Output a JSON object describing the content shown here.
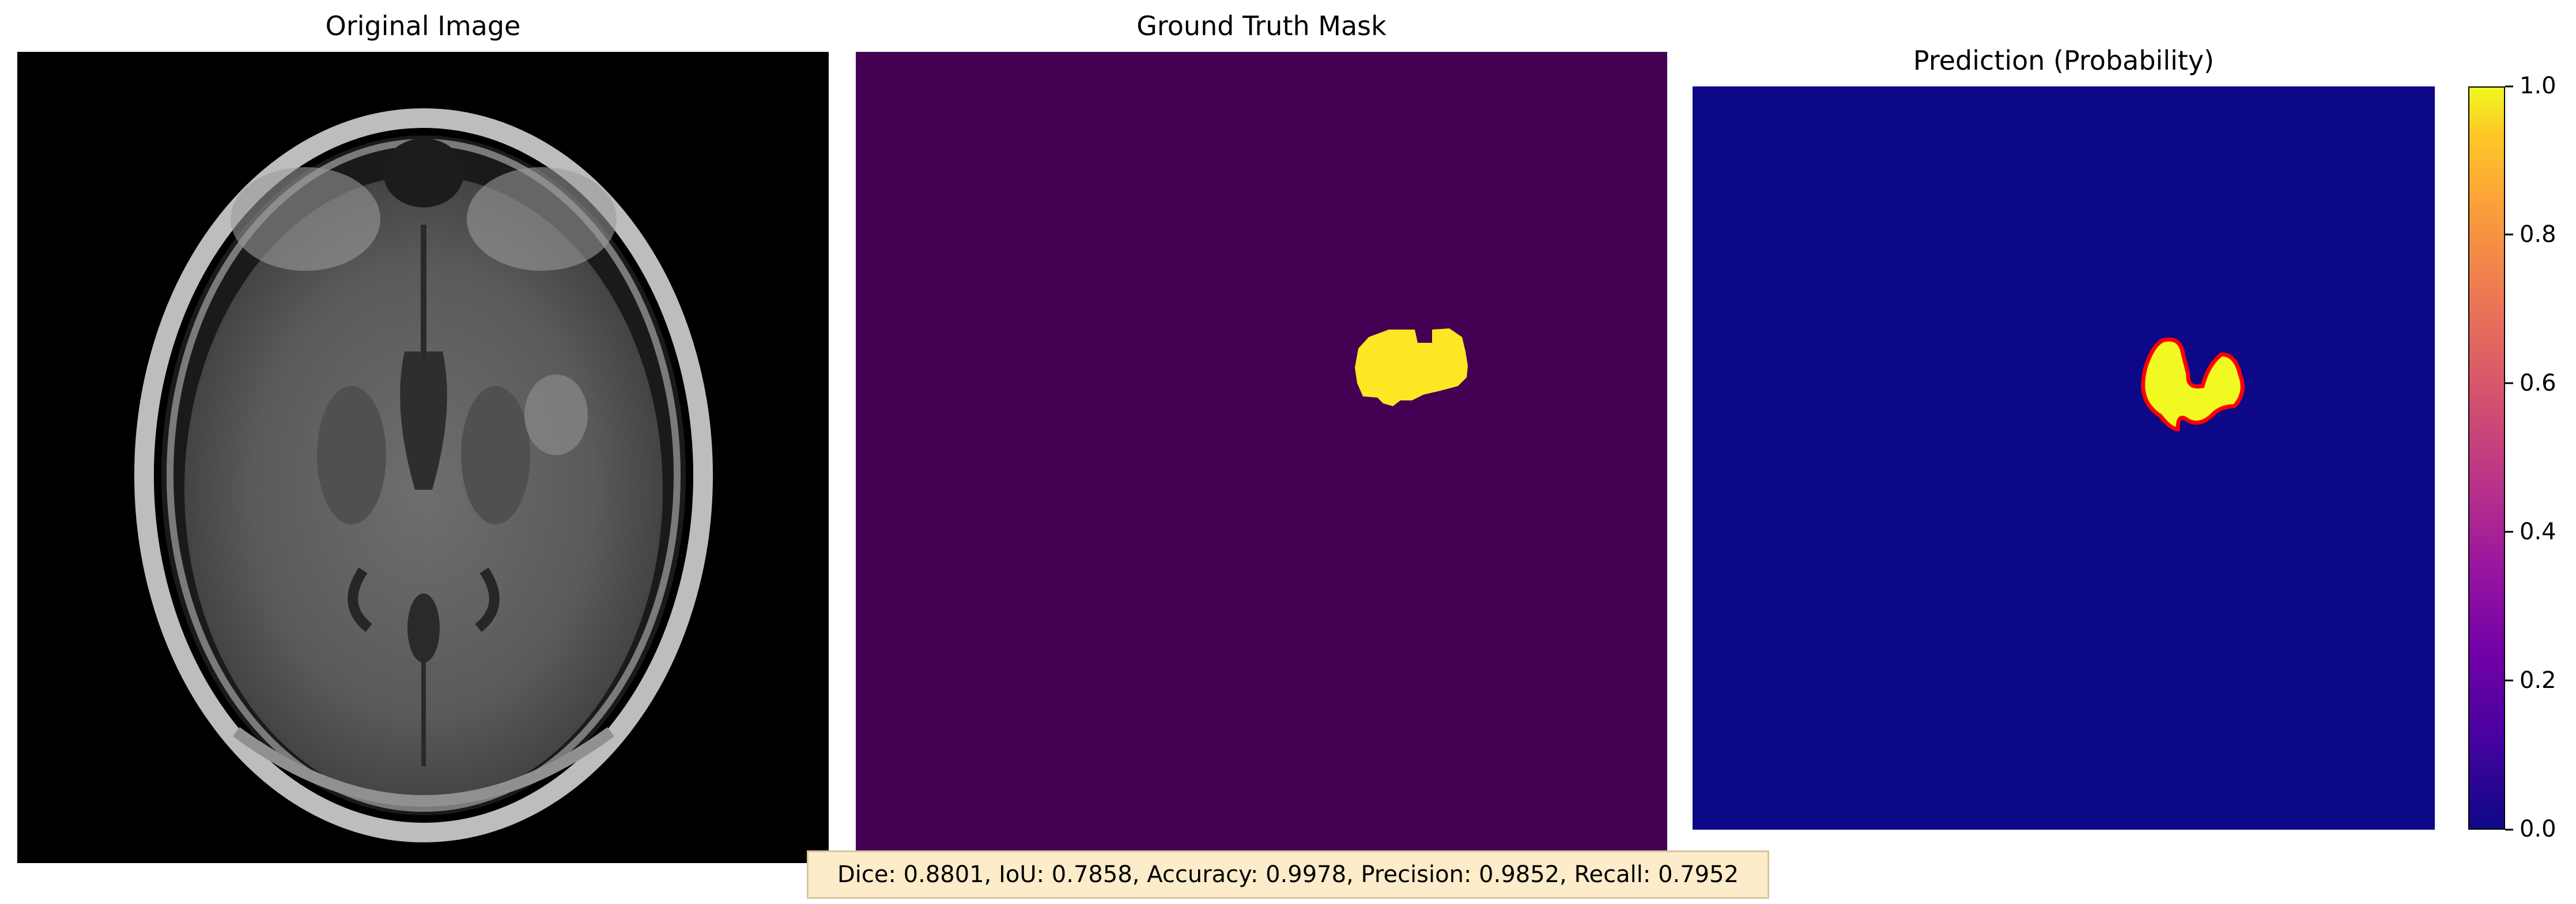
{
  "panels": {
    "original": {
      "title": "Original Image"
    },
    "ground_truth": {
      "title": "Ground Truth Mask"
    },
    "prediction": {
      "title": "Prediction (Probability)"
    }
  },
  "colorbar": {
    "ticks": [
      "0.0",
      "0.2",
      "0.4",
      "0.6",
      "0.8",
      "1.0"
    ],
    "colormap": "plasma"
  },
  "colors": {
    "gt_background": "#440154",
    "gt_mask": "#fde725",
    "pred_background": "#0d0887",
    "pred_mask": "#f0f921",
    "pred_contour": "#ff0000"
  },
  "metrics": {
    "text": "Dice: 0.8801, IoU: 0.7858, Accuracy: 0.9978, Precision: 0.9852, Recall: 0.7952"
  }
}
